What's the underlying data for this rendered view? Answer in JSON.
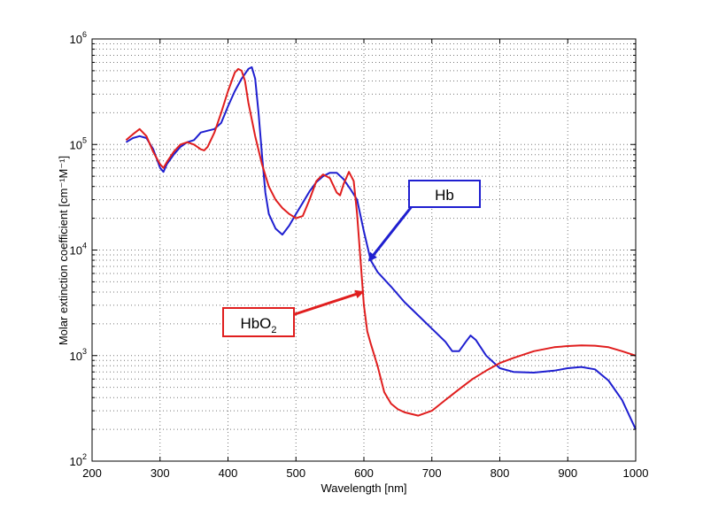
{
  "chart_data": {
    "type": "line",
    "title": "",
    "xlabel": "Wavelength [nm]",
    "ylabel": "Molar extinction coefficient [cm⁻¹M⁻¹]",
    "xlim": [
      200,
      1000
    ],
    "ylim": [
      100,
      1000000
    ],
    "yscale": "log",
    "grid": true,
    "x_ticks": [
      "200",
      "300",
      "400",
      "500",
      "600",
      "700",
      "800",
      "900",
      "1000"
    ],
    "y_ticks": [
      {
        "base": "10",
        "exp": "2"
      },
      {
        "base": "10",
        "exp": "3"
      },
      {
        "base": "10",
        "exp": "4"
      },
      {
        "base": "10",
        "exp": "5"
      },
      {
        "base": "10",
        "exp": "6"
      }
    ],
    "series": [
      {
        "name": "Hb",
        "color": "#1f1fd0",
        "points": [
          [
            250,
            105000
          ],
          [
            260,
            115000
          ],
          [
            270,
            120000
          ],
          [
            280,
            115000
          ],
          [
            290,
            90000
          ],
          [
            300,
            60000
          ],
          [
            305,
            55000
          ],
          [
            310,
            65000
          ],
          [
            320,
            80000
          ],
          [
            330,
            95000
          ],
          [
            340,
            105000
          ],
          [
            350,
            110000
          ],
          [
            360,
            130000
          ],
          [
            370,
            135000
          ],
          [
            380,
            140000
          ],
          [
            390,
            160000
          ],
          [
            400,
            230000
          ],
          [
            410,
            320000
          ],
          [
            420,
            420000
          ],
          [
            430,
            520000
          ],
          [
            435,
            540000
          ],
          [
            440,
            420000
          ],
          [
            445,
            200000
          ],
          [
            450,
            80000
          ],
          [
            455,
            35000
          ],
          [
            460,
            22000
          ],
          [
            470,
            16000
          ],
          [
            480,
            14000
          ],
          [
            490,
            17000
          ],
          [
            500,
            22000
          ],
          [
            510,
            28000
          ],
          [
            520,
            36000
          ],
          [
            530,
            44000
          ],
          [
            540,
            50000
          ],
          [
            550,
            54000
          ],
          [
            560,
            54000
          ],
          [
            570,
            47000
          ],
          [
            580,
            38000
          ],
          [
            590,
            30000
          ],
          [
            600,
            15000
          ],
          [
            610,
            8000
          ],
          [
            620,
            6200
          ],
          [
            640,
            4500
          ],
          [
            660,
            3200
          ],
          [
            680,
            2400
          ],
          [
            700,
            1800
          ],
          [
            720,
            1350
          ],
          [
            730,
            1100
          ],
          [
            740,
            1100
          ],
          [
            750,
            1350
          ],
          [
            757,
            1550
          ],
          [
            765,
            1400
          ],
          [
            780,
            1000
          ],
          [
            800,
            760
          ],
          [
            820,
            700
          ],
          [
            850,
            690
          ],
          [
            880,
            720
          ],
          [
            900,
            760
          ],
          [
            920,
            780
          ],
          [
            940,
            740
          ],
          [
            960,
            580
          ],
          [
            980,
            380
          ],
          [
            1000,
            200
          ]
        ]
      },
      {
        "name": "HbO2",
        "color": "#e01e1e",
        "points": [
          [
            250,
            110000
          ],
          [
            260,
            125000
          ],
          [
            270,
            140000
          ],
          [
            280,
            120000
          ],
          [
            290,
            85000
          ],
          [
            300,
            65000
          ],
          [
            305,
            60000
          ],
          [
            310,
            68000
          ],
          [
            320,
            85000
          ],
          [
            330,
            100000
          ],
          [
            340,
            105000
          ],
          [
            350,
            100000
          ],
          [
            360,
            90000
          ],
          [
            365,
            88000
          ],
          [
            370,
            95000
          ],
          [
            380,
            130000
          ],
          [
            390,
            200000
          ],
          [
            400,
            320000
          ],
          [
            410,
            480000
          ],
          [
            415,
            520000
          ],
          [
            420,
            500000
          ],
          [
            425,
            400000
          ],
          [
            430,
            250000
          ],
          [
            440,
            120000
          ],
          [
            450,
            65000
          ],
          [
            460,
            40000
          ],
          [
            470,
            30000
          ],
          [
            480,
            25000
          ],
          [
            490,
            22000
          ],
          [
            500,
            20000
          ],
          [
            510,
            21000
          ],
          [
            520,
            30000
          ],
          [
            530,
            45000
          ],
          [
            540,
            52000
          ],
          [
            550,
            48000
          ],
          [
            560,
            35000
          ],
          [
            565,
            33000
          ],
          [
            570,
            42000
          ],
          [
            578,
            55000
          ],
          [
            585,
            45000
          ],
          [
            590,
            22000
          ],
          [
            595,
            8000
          ],
          [
            600,
            3000
          ],
          [
            605,
            1700
          ],
          [
            610,
            1300
          ],
          [
            620,
            800
          ],
          [
            630,
            450
          ],
          [
            640,
            350
          ],
          [
            650,
            310
          ],
          [
            660,
            290
          ],
          [
            680,
            270
          ],
          [
            700,
            300
          ],
          [
            720,
            380
          ],
          [
            740,
            480
          ],
          [
            760,
            600
          ],
          [
            780,
            720
          ],
          [
            800,
            850
          ],
          [
            820,
            950
          ],
          [
            850,
            1100
          ],
          [
            880,
            1200
          ],
          [
            900,
            1230
          ],
          [
            920,
            1250
          ],
          [
            940,
            1240
          ],
          [
            960,
            1200
          ],
          [
            980,
            1100
          ],
          [
            1000,
            1000
          ]
        ]
      }
    ],
    "annotations": [
      {
        "id": "hb",
        "text": "Hb",
        "sub": "",
        "color": "#1f1fd0",
        "target": [
          608,
          8000
        ]
      },
      {
        "id": "hbo2",
        "text": "HbO",
        "sub": "2",
        "color": "#e01e1e",
        "target": [
          598,
          4000
        ]
      }
    ]
  }
}
